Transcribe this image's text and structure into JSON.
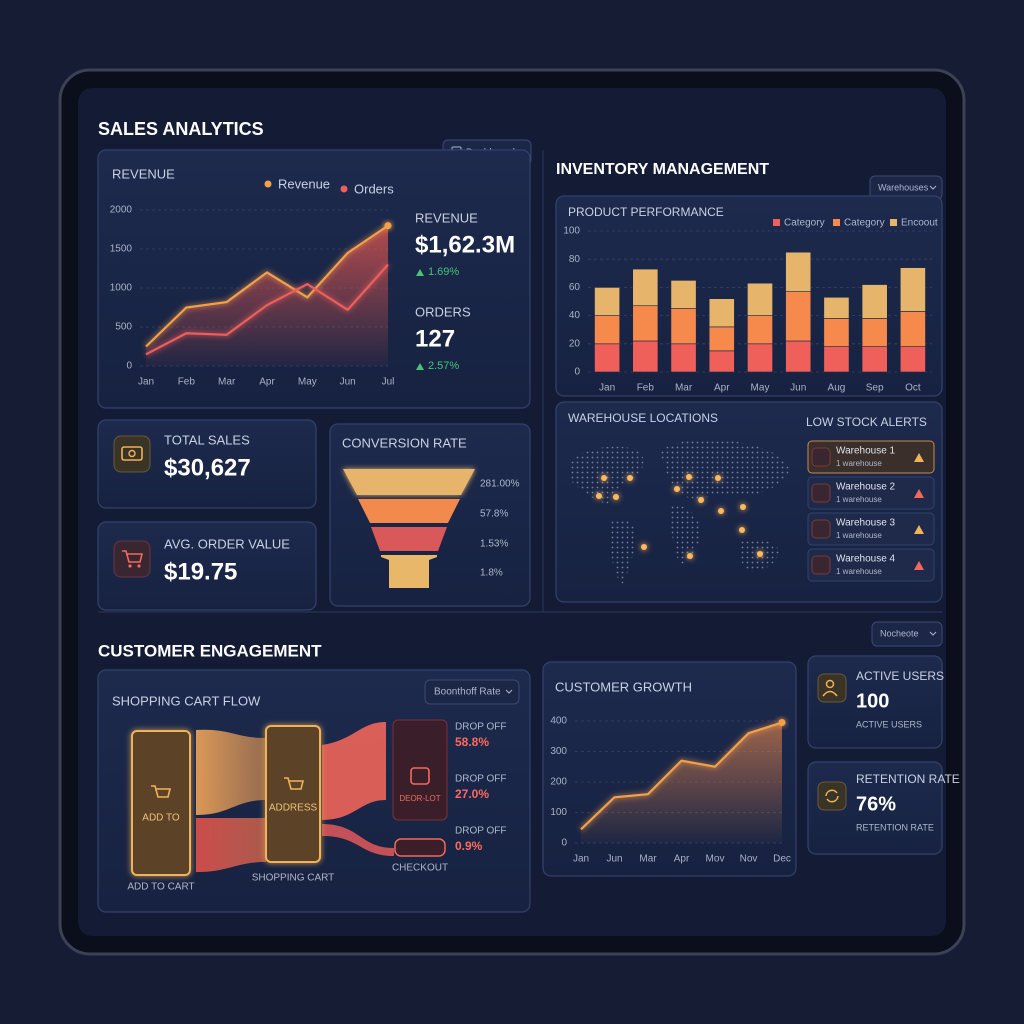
{
  "sales_analytics": {
    "title": "SALES ANALYTICS",
    "dropdown": "Dashboard",
    "revenue_chart": {
      "type": "line",
      "title": "REVENUE",
      "categories": [
        "Jan",
        "Feb",
        "Mar",
        "Apr",
        "May",
        "Jun",
        "Jul"
      ],
      "series": [
        {
          "name": "Revenue",
          "color": "#f5a04a",
          "values": [
            250,
            750,
            820,
            1200,
            880,
            1450,
            1800
          ]
        },
        {
          "name": "Orders",
          "color": "#ee5f5b",
          "values": [
            150,
            420,
            400,
            780,
            1050,
            720,
            1300
          ]
        }
      ],
      "ylim": [
        0,
        2000
      ],
      "yticks": [
        0,
        500,
        1000,
        1500,
        2000
      ]
    },
    "revenue_summary": {
      "label": "REVENUE",
      "value": "$1,62.3M",
      "change": "1.69%"
    },
    "orders_summary": {
      "label": "ORDERS",
      "value": "127",
      "change": "2.57%"
    },
    "total_sales": {
      "label": "TOTAL SALES",
      "value": "$30,627"
    },
    "avg_order_value": {
      "label": "AVG. ORDER VALUE",
      "value": "$19.75"
    },
    "conversion_rate": {
      "title": "CONVERSION RATE",
      "stages": [
        "281.00%",
        "57.8%",
        "1.53%",
        "1.8%"
      ]
    }
  },
  "inventory_management": {
    "title": "INVENTORY MANAGEMENT",
    "dropdown": "Warehouses",
    "product_performance": {
      "type": "bar",
      "title": "PRODUCT PERFORMANCE",
      "categories": [
        "Jan",
        "Feb",
        "Mar",
        "Apr",
        "May",
        "Jun",
        "Aug",
        "Sep",
        "Oct"
      ],
      "series": [
        {
          "name": "Category",
          "color": "#f0605a",
          "values": [
            20,
            22,
            20,
            15,
            20,
            22,
            18,
            18,
            18
          ]
        },
        {
          "name": "Category",
          "color": "#f58a4c",
          "values": [
            20,
            25,
            25,
            17,
            20,
            35,
            20,
            20,
            25
          ]
        },
        {
          "name": "Encoout",
          "color": "#e6b46a",
          "values": [
            20,
            26,
            20,
            20,
            23,
            28,
            15,
            24,
            31
          ]
        }
      ],
      "ylim": [
        0,
        100
      ],
      "yticks": [
        0,
        20,
        40,
        60,
        80,
        100
      ]
    },
    "warehouse_locations": {
      "title": "WAREHOUSE LOCATIONS"
    },
    "low_stock_alerts": {
      "title": "LOW STOCK ALERTS",
      "items": [
        {
          "name": "Warehouse 1",
          "detail": "1 warehouse"
        },
        {
          "name": "Warehouse 2",
          "detail": "1 warehouse"
        },
        {
          "name": "Warehouse 3",
          "detail": "1 warehouse"
        },
        {
          "name": "Warehouse 4",
          "detail": "1 warehouse"
        }
      ]
    }
  },
  "customer_engagement": {
    "title": "CUSTOMER ENGAGEMENT",
    "dropdown": "Nocheote",
    "shopping_cart_flow": {
      "title": "SHOPPING CART FLOW",
      "dropdown": "Boonthoff Rate",
      "nodes": [
        {
          "label": "ADD TO",
          "caption": "ADD TO CART"
        },
        {
          "label": "ADDRESS",
          "caption": "SHOPPING CART"
        },
        {
          "label": "DEOR-LOT",
          "caption": "CHECKOUT"
        }
      ],
      "drop_offs": [
        {
          "label": "DROP OFF",
          "value": "58.8%"
        },
        {
          "label": "DROP OFF",
          "value": "27.0%"
        },
        {
          "label": "DROP OFF",
          "value": "0.9%"
        }
      ]
    },
    "customer_growth": {
      "type": "line",
      "title": "CUSTOMER GROWTH",
      "categories": [
        "Jan",
        "Jun",
        "Mar",
        "Apr",
        "Mov",
        "Nov",
        "Dec"
      ],
      "values": [
        45,
        150,
        160,
        270,
        250,
        360,
        395
      ],
      "color": "#f5a04a",
      "ylim": [
        0,
        400
      ],
      "yticks": [
        0,
        100,
        200,
        300,
        400
      ]
    },
    "active_users": {
      "label": "ACTIVE USERS",
      "value": "100",
      "caption": "ACTIVE USERS"
    },
    "retention_rate": {
      "label": "RETENTION RATE",
      "value": "76%",
      "caption": "RETENTION RATE"
    }
  }
}
